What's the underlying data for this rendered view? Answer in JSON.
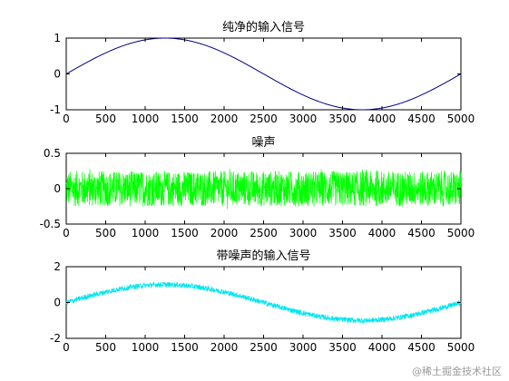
{
  "chart_data": [
    {
      "type": "line",
      "title": "纯净的输入信号",
      "xlim": [
        0,
        5000
      ],
      "ylim": [
        -1,
        1
      ],
      "xticks": [
        0,
        500,
        1000,
        1500,
        2000,
        2500,
        3000,
        3500,
        4000,
        4500,
        5000
      ],
      "yticks": [
        1,
        0,
        -1
      ],
      "series": [
        {
          "color": "#00007f",
          "kind": "sine",
          "amplitude": 1,
          "period": 5000,
          "x": [
            0,
            625,
            1250,
            1875,
            2500,
            3125,
            3750,
            4375,
            5000
          ],
          "y": [
            0,
            0.707,
            1,
            0.707,
            0,
            -0.707,
            -1,
            -0.707,
            0
          ]
        }
      ]
    },
    {
      "type": "line",
      "title": "噪声",
      "xlim": [
        0,
        5000
      ],
      "ylim": [
        -0.5,
        0.5
      ],
      "xticks": [
        0,
        500,
        1000,
        1500,
        2000,
        2500,
        3000,
        3500,
        4000,
        4500,
        5000
      ],
      "yticks": [
        0.5,
        0,
        -0.5
      ],
      "series": [
        {
          "color": "#00ff00",
          "kind": "noise",
          "mean": 0,
          "range": [
            -0.25,
            0.25
          ]
        }
      ]
    },
    {
      "type": "line",
      "title": "带噪声的输入信号",
      "xlim": [
        0,
        5000
      ],
      "ylim": [
        -2,
        2
      ],
      "xticks": [
        0,
        500,
        1000,
        1500,
        2000,
        2500,
        3000,
        3500,
        4000,
        4500,
        5000
      ],
      "yticks": [
        2,
        0,
        -2
      ],
      "series": [
        {
          "color": "#00e5ee",
          "kind": "sine+noise",
          "amplitude": 1,
          "period": 5000,
          "noise_range": [
            -0.15,
            0.15
          ]
        }
      ]
    }
  ],
  "watermark": "@稀土掘金技术社区"
}
